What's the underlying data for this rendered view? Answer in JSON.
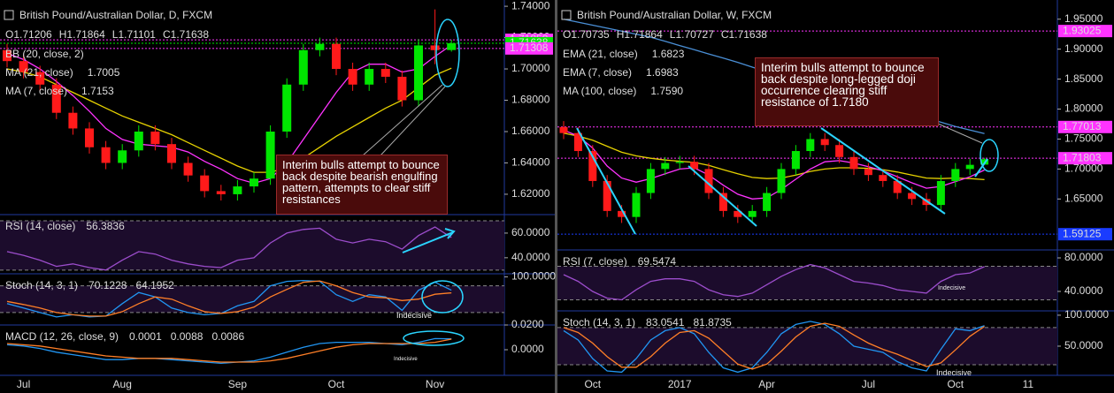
{
  "chart_data": [
    {
      "type": "candlestick",
      "title": "British Pound/Australian Dollar, D, FXCM",
      "ohlc_labels": [
        "O",
        "H",
        "L",
        "C"
      ],
      "up_color": "#00e600",
      "down_color": "#ff1a1a",
      "categories": [
        null,
        "Jul",
        null,
        null,
        null,
        null,
        null,
        "Aug",
        null,
        null,
        null,
        null,
        null,
        null,
        "Sep",
        null,
        null,
        null,
        null,
        null,
        "Oct",
        null,
        null,
        null,
        null,
        null,
        "Nov",
        null
      ],
      "open": [
        1.712,
        1.705,
        1.698,
        1.69,
        1.672,
        1.662,
        1.65,
        1.64,
        1.648,
        1.66,
        1.652,
        1.64,
        1.632,
        1.622,
        1.62,
        1.625,
        1.63,
        1.66,
        1.69,
        1.712,
        1.716,
        1.7,
        1.69,
        1.7,
        1.695,
        1.68,
        1.715,
        1.71206
      ],
      "high": [
        1.716,
        1.709,
        1.702,
        1.694,
        1.676,
        1.666,
        1.654,
        1.652,
        1.664,
        1.664,
        1.656,
        1.644,
        1.636,
        1.626,
        1.629,
        1.634,
        1.664,
        1.694,
        1.716,
        1.72,
        1.72,
        1.704,
        1.704,
        1.704,
        1.699,
        1.719,
        1.738,
        1.71864
      ],
      "low": [
        1.701,
        1.694,
        1.686,
        1.668,
        1.658,
        1.646,
        1.636,
        1.636,
        1.644,
        1.648,
        1.636,
        1.628,
        1.618,
        1.616,
        1.616,
        1.621,
        1.626,
        1.656,
        1.686,
        1.708,
        1.696,
        1.686,
        1.686,
        1.691,
        1.676,
        1.676,
        1.703,
        1.71101
      ],
      "close": [
        1.705,
        1.698,
        1.69,
        1.672,
        1.662,
        1.65,
        1.64,
        1.648,
        1.66,
        1.652,
        1.64,
        1.632,
        1.622,
        1.62,
        1.625,
        1.63,
        1.66,
        1.69,
        1.712,
        1.716,
        1.7,
        1.69,
        1.7,
        1.695,
        1.68,
        1.715,
        1.712,
        1.71638
      ],
      "ylim": [
        1.607,
        1.744
      ],
      "yticks": [
        {
          "value": 1.62,
          "label": "1.62000"
        },
        {
          "value": 1.64,
          "label": "1.64000"
        },
        {
          "value": 1.66,
          "label": "1.66000"
        },
        {
          "value": 1.68,
          "label": "1.68000"
        },
        {
          "value": 1.7,
          "label": "1.70000"
        },
        {
          "value": 1.72,
          "label": "1.72000"
        },
        {
          "value": 1.74,
          "label": "1.74000"
        }
      ],
      "overlays": [
        {
          "name": "BB (20, close, 2)"
        },
        {
          "name": "MA (21, close)",
          "color": "#e6d200",
          "readout": "1.7005",
          "values": [
            1.7,
            1.698,
            1.695,
            1.69,
            1.685,
            1.68,
            1.675,
            1.67,
            1.666,
            1.662,
            1.658,
            1.653,
            1.648,
            1.643,
            1.638,
            1.634,
            1.634,
            1.637,
            1.643,
            1.65,
            1.657,
            1.663,
            1.669,
            1.675,
            1.68,
            1.688,
            1.696,
            1.7005
          ]
        },
        {
          "name": "MA (7, close)",
          "color": "#ff33ff",
          "readout": "1.7153",
          "values": [
            1.71,
            1.706,
            1.7,
            1.692,
            1.683,
            1.673,
            1.662,
            1.655,
            1.652,
            1.651,
            1.65,
            1.647,
            1.641,
            1.636,
            1.63,
            1.627,
            1.63,
            1.64,
            1.655,
            1.67,
            1.685,
            1.698,
            1.703,
            1.703,
            1.698,
            1.7,
            1.708,
            1.7153
          ]
        }
      ],
      "price_lines": [
        {
          "value": 1.71859,
          "color": "#ff33ff"
        },
        {
          "value": 1.71638,
          "color": "#00e600"
        },
        {
          "value": 1.71308,
          "color": "#ff33ff"
        }
      ],
      "panels": [
        {
          "name": "RSI (14, close)",
          "ylim": [
            27,
            75
          ],
          "yticks": [
            {
              "value": 40,
              "label": "40.0000"
            },
            {
              "value": 60,
              "label": "60.0000"
            }
          ],
          "levels": [
            70,
            30
          ],
          "series": [
            {
              "color": "#9c4dcc",
              "readout": "56.3836",
              "values": [
                45,
                42,
                38,
                33,
                35,
                32,
                30,
                38,
                45,
                43,
                38,
                35,
                33,
                32,
                38,
                40,
                52,
                60,
                63,
                64,
                55,
                52,
                55,
                53,
                47,
                58,
                65,
                56.3836
              ]
            }
          ]
        },
        {
          "name": "Stoch (14, 3, 1)",
          "ylim": [
            -8,
            107
          ],
          "yticks": [
            {
              "value": 100,
              "label": "100.0000"
            }
          ],
          "levels": [
            80,
            20
          ],
          "series": [
            {
              "color": "#2196f3",
              "readout": "70.1228",
              "values": [
                40,
                30,
                20,
                10,
                15,
                10,
                12,
                40,
                65,
                55,
                30,
                20,
                15,
                18,
                35,
                45,
                80,
                90,
                92,
                90,
                60,
                45,
                60,
                55,
                25,
                70,
                88,
                70.1228
              ]
            },
            {
              "color": "#ff7f27",
              "readout": "64.1952",
              "values": [
                45,
                38,
                30,
                20,
                15,
                12,
                12,
                22,
                40,
                55,
                50,
                35,
                22,
                18,
                22,
                32,
                55,
                72,
                88,
                91,
                80,
                65,
                55,
                53,
                47,
                50,
                61,
                64.1952
              ]
            }
          ]
        },
        {
          "name": "MACD (12, 26, close, 9)",
          "ylim": [
            -0.0207,
            0.02
          ],
          "yticks": [
            {
              "value": 0,
              "label": "0.0000"
            },
            {
              "value": 0.02,
              "label": "0.0200"
            }
          ],
          "levels": [],
          "series": [
            {
              "color": "#ff1a5c",
              "readout": "0.0001"
            },
            {
              "color": "#2196f3",
              "readout": "0.0088",
              "values": [
                0.004,
                0.003,
                0.001,
                -0.002,
                -0.004,
                -0.006,
                -0.008,
                -0.008,
                -0.007,
                -0.007,
                -0.008,
                -0.009,
                -0.01,
                -0.011,
                -0.01,
                -0.009,
                -0.006,
                -0.002,
                0.002,
                0.005,
                0.006,
                0.006,
                0.006,
                0.005,
                0.004,
                0.006,
                0.009,
                0.0088
              ]
            },
            {
              "color": "#ff7f27",
              "readout": "0.0086",
              "values": [
                0.005,
                0.004,
                0.003,
                0.001,
                -0.001,
                -0.003,
                -0.005,
                -0.006,
                -0.007,
                -0.007,
                -0.007,
                -0.008,
                -0.009,
                -0.01,
                -0.01,
                -0.01,
                -0.009,
                -0.007,
                -0.004,
                -0.001,
                0.002,
                0.004,
                0.005,
                0.005,
                0.005,
                0.005,
                0.006,
                0.0086
              ]
            }
          ]
        }
      ],
      "annotations": [
        {
          "text": "Interim bulls attempt to bounce back despite bearish engulfing pattern, attempts to clear stiff resistances"
        },
        {
          "text": "Indecisive"
        },
        {
          "text": "Indecisive"
        }
      ]
    },
    {
      "type": "candlestick",
      "title": "British Pound/Australian Dollar, W, FXCM",
      "ohlc_labels": [
        "O",
        "H",
        "L",
        "C"
      ],
      "up_color": "#00e600",
      "down_color": "#ff1a1a",
      "categories": [
        null,
        null,
        "Oct",
        null,
        null,
        null,
        null,
        null,
        "2017",
        null,
        null,
        null,
        null,
        null,
        "Apr",
        null,
        null,
        null,
        null,
        null,
        null,
        "Jul",
        null,
        null,
        null,
        null,
        null,
        "Oct",
        null,
        null,
        null,
        null,
        "11"
      ],
      "open": [
        1.77,
        1.76,
        1.73,
        1.68,
        1.63,
        1.62,
        1.66,
        1.7,
        1.71,
        1.712,
        1.7,
        1.66,
        1.63,
        1.62,
        1.63,
        1.66,
        1.7,
        1.73,
        1.75,
        1.74,
        1.72,
        1.7,
        1.69,
        1.68,
        1.66,
        1.65,
        1.64,
        1.68,
        1.7,
        1.70735,
        null,
        null,
        null
      ],
      "high": [
        1.78,
        1.77,
        1.74,
        1.69,
        1.64,
        1.67,
        1.71,
        1.72,
        1.722,
        1.722,
        1.71,
        1.67,
        1.64,
        1.64,
        1.67,
        1.71,
        1.74,
        1.76,
        1.76,
        1.75,
        1.73,
        1.71,
        1.7,
        1.69,
        1.67,
        1.66,
        1.69,
        1.71,
        1.717,
        1.71864,
        null,
        null,
        null
      ],
      "low": [
        1.75,
        1.72,
        1.67,
        1.62,
        1.61,
        1.61,
        1.65,
        1.69,
        1.7,
        1.69,
        1.65,
        1.62,
        1.61,
        1.61,
        1.62,
        1.65,
        1.69,
        1.72,
        1.73,
        1.71,
        1.69,
        1.68,
        1.67,
        1.65,
        1.64,
        1.63,
        1.63,
        1.67,
        1.69,
        1.70727,
        null,
        null,
        null
      ],
      "close": [
        1.76,
        1.73,
        1.68,
        1.63,
        1.62,
        1.66,
        1.7,
        1.71,
        1.712,
        1.7,
        1.66,
        1.63,
        1.62,
        1.63,
        1.66,
        1.7,
        1.73,
        1.75,
        1.74,
        1.72,
        1.7,
        1.69,
        1.68,
        1.66,
        1.65,
        1.64,
        1.68,
        1.7,
        1.707,
        1.71638,
        null,
        null,
        null
      ],
      "ylim": [
        1.565,
        1.982
      ],
      "yticks": [
        {
          "value": 1.65,
          "label": "1.65000"
        },
        {
          "value": 1.7,
          "label": "1.70000"
        },
        {
          "value": 1.75,
          "label": "1.75000"
        },
        {
          "value": 1.8,
          "label": "1.80000"
        },
        {
          "value": 1.85,
          "label": "1.85000"
        },
        {
          "value": 1.9,
          "label": "1.90000"
        },
        {
          "value": 1.95,
          "label": "1.95000"
        }
      ],
      "overlays": [
        {
          "name": "EMA (21, close)",
          "color": "#e6d200",
          "readout": "1.6823",
          "values": [
            1.76,
            1.755,
            1.748,
            1.738,
            1.728,
            1.722,
            1.718,
            1.715,
            1.713,
            1.711,
            1.706,
            1.699,
            1.692,
            1.686,
            1.684,
            1.685,
            1.69,
            1.696,
            1.7,
            1.702,
            1.702,
            1.701,
            1.699,
            1.695,
            1.69,
            1.685,
            1.684,
            1.685,
            1.684,
            1.6823,
            null,
            null,
            null
          ]
        },
        {
          "name": "EMA (7, close)",
          "color": "#ff33ff",
          "readout": "1.6983",
          "values": [
            1.765,
            1.755,
            1.735,
            1.705,
            1.685,
            1.678,
            1.684,
            1.692,
            1.7,
            1.702,
            1.69,
            1.673,
            1.658,
            1.65,
            1.652,
            1.666,
            1.683,
            1.7,
            1.712,
            1.714,
            1.71,
            1.704,
            1.697,
            1.687,
            1.677,
            1.668,
            1.671,
            1.679,
            1.687,
            1.6983,
            null,
            null,
            null
          ]
        },
        {
          "name": "MA (100, close)",
          "color": "#4a8fd6",
          "readout": "1.7590",
          "values": [
            1.95,
            1.945,
            1.94,
            1.935,
            1.93,
            1.925,
            1.92,
            1.913,
            1.906,
            1.899,
            1.892,
            1.885,
            1.878,
            1.87,
            1.862,
            1.855,
            1.848,
            1.841,
            1.834,
            1.827,
            1.82,
            1.813,
            1.806,
            1.799,
            1.792,
            1.785,
            1.778,
            1.771,
            1.765,
            1.759,
            null,
            null,
            null
          ]
        }
      ],
      "price_lines": [
        {
          "value": 1.93025,
          "color": "#ff33ff"
        },
        {
          "value": 1.77013,
          "color": "#ff33ff"
        },
        {
          "value": 1.71803,
          "color": "#ff33ff"
        },
        {
          "value": 1.59125,
          "color": "#1a3cff"
        }
      ],
      "panels": [
        {
          "name": "RSI (7, close)",
          "ylim": [
            16.8,
            89.5
          ],
          "yticks": [
            {
              "value": 40,
              "label": "40.0000"
            },
            {
              "value": 80,
              "label": "80.0000"
            }
          ],
          "levels": [
            70,
            30
          ],
          "series": [
            {
              "color": "#9c4dcc",
              "readout": "69.5474",
              "values": [
                60,
                52,
                40,
                32,
                30,
                42,
                52,
                55,
                55,
                52,
                42,
                36,
                34,
                38,
                48,
                58,
                66,
                72,
                68,
                60,
                52,
                50,
                47,
                42,
                40,
                38,
                52,
                60,
                62,
                69.5474,
                null,
                null,
                null
              ]
            }
          ]
        },
        {
          "name": "Stoch (14, 3, 1)",
          "ylim": [
            2.9,
            107
          ],
          "yticks": [
            {
              "value": 50,
              "label": "50.0000"
            },
            {
              "value": 100,
              "label": "100.0000"
            }
          ],
          "levels": [
            80,
            20
          ],
          "series": [
            {
              "color": "#2196f3",
              "readout": "83.0541",
              "values": [
                75,
                60,
                30,
                10,
                8,
                30,
                60,
                75,
                80,
                70,
                40,
                15,
                8,
                15,
                40,
                70,
                85,
                90,
                85,
                70,
                50,
                45,
                40,
                25,
                15,
                10,
                45,
                78,
                75,
                83.0541,
                null,
                null,
                null
              ]
            },
            {
              "color": "#ff7f27",
              "readout": "81.8735",
              "values": [
                80,
                72,
                55,
                33,
                16,
                16,
                33,
                55,
                72,
                75,
                63,
                42,
                21,
                13,
                21,
                42,
                65,
                82,
                87,
                82,
                68,
                55,
                45,
                37,
                27,
                17,
                23,
                44,
                66,
                81.8735,
                null,
                null,
                null
              ]
            }
          ]
        }
      ],
      "annotations": [
        {
          "text": "Interim bulls attempt to bounce back despite long-legged doji occurrence clearing stiff resistance of 1.7180"
        },
        {
          "text": "Indecisive"
        },
        {
          "text": "Indecisive"
        }
      ]
    }
  ]
}
